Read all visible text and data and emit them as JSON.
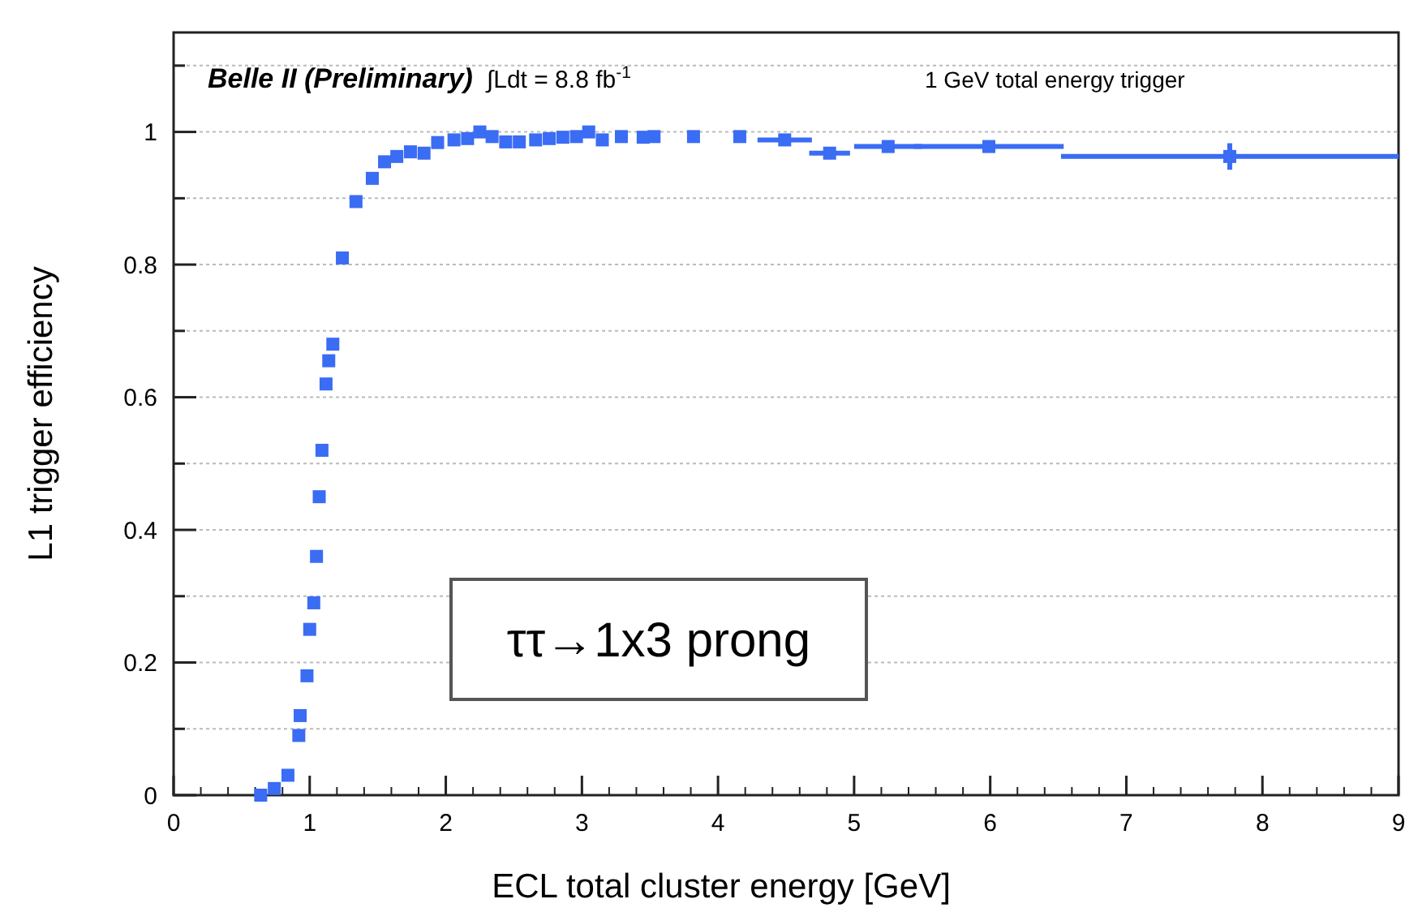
{
  "chart_data": {
    "type": "scatter",
    "xlabel": "ECL total cluster energy [GeV]",
    "ylabel": "L1 trigger efficiency",
    "xlim": [
      0,
      9
    ],
    "xticks": [
      0,
      1,
      2,
      3,
      4,
      5,
      6,
      7,
      8,
      9
    ],
    "ylim": [
      0,
      1.15
    ],
    "yticks": [
      0,
      {
        "value": 0.1,
        "label": null
      },
      0.2,
      {
        "value": 0.3,
        "label": null
      },
      0.4,
      {
        "value": 0.5,
        "label": null
      },
      0.6,
      {
        "value": 0.7,
        "label": null
      },
      0.8,
      {
        "value": 0.9,
        "label": null
      },
      1,
      {
        "value": 1.1,
        "label": null
      }
    ],
    "grid": "y",
    "marker": "square",
    "annotations": [
      "Belle II (Preliminary)",
      "∫Ldt = 8.8 fb$^{-1}$",
      "1 GeV total energy trigger",
      "ττ→1x3 prong"
    ],
    "series": [
      {
        "color": "#3a6cf4",
        "x": [
          0.64,
          0.74,
          0.84,
          0.92,
          0.93,
          0.98,
          1.0,
          1.03,
          1.05,
          1.07,
          1.09,
          1.12,
          1.14,
          1.17,
          1.24,
          1.34,
          1.46,
          1.55,
          1.64,
          1.74,
          1.84,
          1.94,
          2.06,
          2.16,
          2.25,
          2.34,
          2.44,
          2.54,
          2.66,
          2.76,
          2.86,
          2.96,
          3.05,
          3.15,
          3.29,
          3.45,
          3.53,
          3.82,
          4.16,
          4.49,
          4.82,
          5.25,
          5.99,
          7.76
        ],
        "values": [
          0.0,
          0.01,
          0.03,
          0.09,
          0.12,
          0.18,
          0.25,
          0.29,
          0.36,
          0.45,
          0.52,
          0.62,
          0.655,
          0.68,
          0.81,
          0.895,
          0.93,
          0.955,
          0.963,
          0.97,
          0.968,
          0.984,
          0.988,
          0.99,
          1.0,
          0.993,
          0.985,
          0.985,
          0.988,
          0.99,
          0.992,
          0.993,
          1.0,
          0.988,
          0.993,
          0.992,
          0.993,
          0.993,
          0.993,
          0.988,
          0.968,
          0.978,
          0.978,
          0.963
        ],
        "xerrors": [
          null,
          null,
          null,
          null,
          null,
          null,
          null,
          null,
          null,
          null,
          null,
          null,
          null,
          null,
          null,
          null,
          null,
          null,
          null,
          null,
          null,
          null,
          null,
          null,
          null,
          null,
          null,
          null,
          null,
          null,
          null,
          null,
          null,
          null,
          null,
          null,
          null,
          null,
          null,
          0.2,
          0.15,
          0.25,
          0.55,
          1.24
        ],
        "errors": [
          null,
          null,
          null,
          null,
          null,
          null,
          null,
          null,
          null,
          null,
          null,
          null,
          null,
          null,
          null,
          null,
          null,
          null,
          null,
          null,
          null,
          null,
          null,
          null,
          null,
          null,
          null,
          null,
          null,
          null,
          null,
          null,
          null,
          null,
          null,
          null,
          null,
          null,
          null,
          null,
          null,
          null,
          null,
          0.02
        ]
      }
    ]
  }
}
